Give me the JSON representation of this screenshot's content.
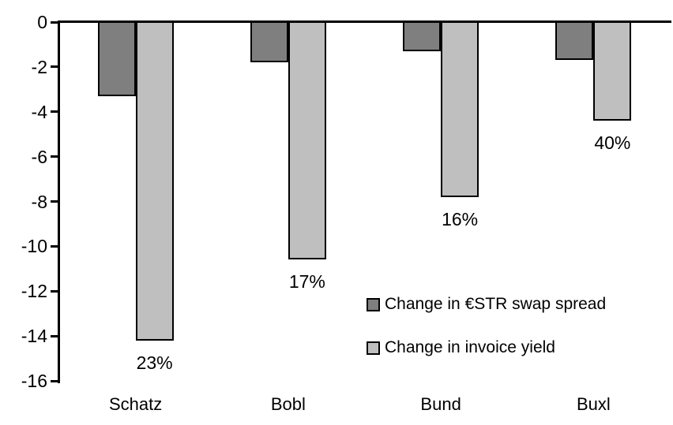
{
  "chart_data": {
    "type": "bar",
    "title": "",
    "xlabel": "",
    "ylabel": "",
    "categories": [
      "Schatz",
      "Bobl",
      "Bund",
      "Buxl"
    ],
    "series": [
      {
        "name": "Change in €STR swap spread",
        "color": "#7f7f7f",
        "values": [
          -3.3,
          -1.8,
          -1.3,
          -1.7
        ]
      },
      {
        "name": "Change in invoice yield",
        "color": "#bfbfbf",
        "values": [
          -14.2,
          -10.6,
          -7.8,
          -4.4
        ],
        "data_labels": [
          "23%",
          "17%",
          "16%",
          "40%"
        ]
      }
    ],
    "ylim": [
      -16,
      0
    ],
    "y_ticks": [
      0,
      -2,
      -4,
      -6,
      -8,
      -10,
      -12,
      -14,
      -16
    ],
    "y_tick_labels": [
      "0",
      "-2",
      "-4",
      "-6",
      "-8",
      "-10",
      "-12",
      "-14",
      "-16"
    ],
    "grid": false,
    "legend_position": "inside-lower-right",
    "bar_border_color": "#000000",
    "axis_color": "#000000",
    "background_color": "#ffffff"
  }
}
